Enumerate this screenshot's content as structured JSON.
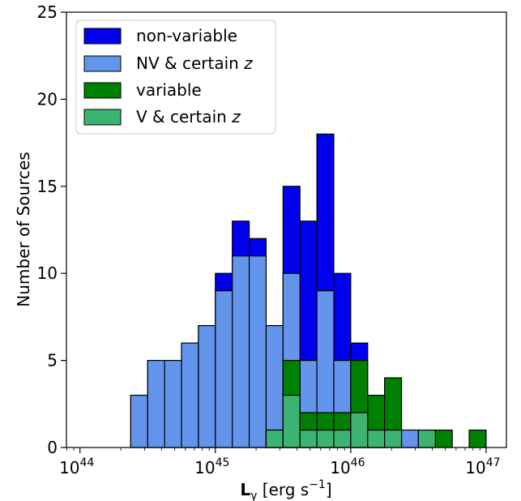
{
  "chart_data": {
    "type": "histogram",
    "title": "",
    "xlabel_main": "L",
    "xlabel_sub": "γ",
    "xlabel_units": " [erg s",
    "xlabel_exp": "−1",
    "xlabel_close": "]",
    "ylabel": "Number of Sources",
    "xscale": "log",
    "xlim_log10": [
      43.9,
      47.15
    ],
    "ylim": [
      0,
      25
    ],
    "bin_width_log10": 0.125,
    "xticks": [
      {
        "mantissa": "10",
        "exp": "44",
        "log10": 44
      },
      {
        "mantissa": "10",
        "exp": "45",
        "log10": 45
      },
      {
        "mantissa": "10",
        "exp": "46",
        "log10": 46
      },
      {
        "mantissa": "10",
        "exp": "47",
        "log10": 47
      }
    ],
    "yticks": [
      "0",
      "5",
      "10",
      "15",
      "20",
      "25"
    ],
    "legend_position": "upper-left",
    "series": [
      {
        "name": "non-variable",
        "color": "#0000ee",
        "bin_start_log10": [
          44.375,
          44.5,
          44.625,
          44.75,
          44.875,
          45.0,
          45.125,
          45.25,
          45.375,
          45.5,
          45.625,
          45.75,
          45.875,
          46.0,
          46.125,
          46.25,
          46.375,
          46.5,
          46.625,
          46.75,
          46.875
        ],
        "values": [
          3,
          5,
          5,
          6,
          7,
          10,
          13,
          12,
          7,
          15,
          13,
          18,
          10,
          6,
          1,
          0,
          1,
          0,
          0,
          0,
          0
        ]
      },
      {
        "name": "NV & certain z",
        "color": "#6495ed",
        "bin_start_log10": [
          44.375,
          44.5,
          44.625,
          44.75,
          44.875,
          45.0,
          45.125,
          45.25,
          45.375,
          45.5,
          45.625,
          45.75,
          45.875,
          46.0,
          46.125,
          46.25,
          46.375,
          46.5,
          46.625,
          46.75,
          46.875
        ],
        "values": [
          3,
          5,
          5,
          6,
          7,
          9,
          11,
          11,
          7,
          10,
          5,
          9,
          5,
          2,
          1,
          0,
          1,
          0,
          0,
          0,
          0
        ]
      },
      {
        "name": "variable",
        "color": "#008000",
        "bin_start_log10": [
          44.375,
          44.5,
          44.625,
          44.75,
          44.875,
          45.0,
          45.125,
          45.25,
          45.375,
          45.5,
          45.625,
          45.75,
          45.875,
          46.0,
          46.125,
          46.25,
          46.375,
          46.5,
          46.625,
          46.75,
          46.875
        ],
        "values": [
          0,
          0,
          0,
          0,
          0,
          0,
          0,
          0,
          1,
          5,
          2,
          2,
          2,
          5,
          3,
          4,
          0,
          1,
          1,
          0,
          1
        ]
      },
      {
        "name": "V & certain z",
        "color": "#3cb371",
        "bin_start_log10": [
          44.375,
          44.5,
          44.625,
          44.75,
          44.875,
          45.0,
          45.125,
          45.25,
          45.375,
          45.5,
          45.625,
          45.75,
          45.875,
          46.0,
          46.125,
          46.25,
          46.375,
          46.5,
          46.625,
          46.75,
          46.875
        ],
        "values": [
          0,
          0,
          0,
          0,
          0,
          0,
          0,
          0,
          1,
          3,
          1,
          1,
          1,
          2,
          1,
          1,
          0,
          1,
          0,
          0,
          0
        ]
      }
    ]
  }
}
